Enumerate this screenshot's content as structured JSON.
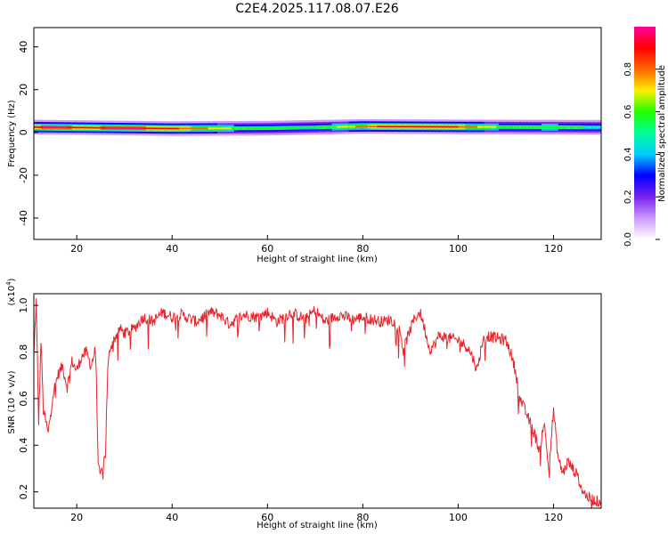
{
  "title": "C2E4.2025.117.08.07.E26",
  "chart_data": [
    {
      "type": "heatmap",
      "xlabel": "Height of straight line (km)",
      "ylabel": "Frequency (Hz)",
      "xlim": [
        11,
        130
      ],
      "ylim": [
        -50,
        49
      ],
      "x_ticks": [
        "20",
        "40",
        "60",
        "80",
        "100",
        "120"
      ],
      "y_ticks": [
        "40",
        "20",
        "0",
        "-20",
        "-40"
      ],
      "grid": false,
      "colorbar": {
        "label": "Normalized spectral amplitude",
        "range": [
          0,
          1
        ],
        "ticks": [
          "0.0",
          "0.2",
          "0.4",
          "0.6",
          "0.8"
        ],
        "colors": [
          "#ffffff",
          "#cc99ff",
          "#7722ee",
          "#0000ff",
          "#00ccff",
          "#00ff99",
          "#22ff00",
          "#ffee00",
          "#ff6600",
          "#ff0000",
          "#ff0099"
        ]
      },
      "band": {
        "center_hz": [
          [
            11,
            2.5
          ],
          [
            40,
            1.8
          ],
          [
            60,
            2.0
          ],
          [
            80,
            2.8
          ],
          [
            100,
            2.6
          ],
          [
            130,
            2.4
          ]
        ],
        "peak_amplitude": [
          [
            11,
            0.85
          ],
          [
            14,
            1.0
          ],
          [
            22,
            0.9
          ],
          [
            30,
            1.0
          ],
          [
            45,
            0.8
          ],
          [
            55,
            0.6
          ],
          [
            70,
            0.55
          ],
          [
            85,
            0.9
          ],
          [
            98,
            0.9
          ],
          [
            110,
            0.6
          ],
          [
            120,
            0.65
          ],
          [
            130,
            0.5
          ]
        ]
      }
    },
    {
      "type": "line",
      "xlabel": "Height of straight line (km)",
      "ylabel": "SNR (10 * v/v)",
      "y_multiplier": "(x10",
      "y_multiplier_exp": "4",
      "y_multiplier_close": ")",
      "xlim": [
        11,
        130
      ],
      "ylim": [
        0.13,
        1.05
      ],
      "x_ticks": [
        "20",
        "40",
        "60",
        "80",
        "100",
        "120"
      ],
      "y_ticks": [
        "1.0",
        "0.8",
        "0.6",
        "0.4",
        "0.2"
      ],
      "color": "#e8242a",
      "grid": false,
      "series": [
        {
          "x": [
            11,
            11.5,
            12,
            12.5,
            13,
            14,
            15,
            16,
            17,
            18,
            19,
            20,
            21,
            22,
            23,
            24,
            24.5,
            25,
            25.5,
            26,
            26.5,
            27,
            28,
            29,
            30,
            32,
            34,
            36,
            38,
            40,
            42,
            45,
            48,
            50,
            52,
            55,
            58,
            60,
            62,
            65,
            68,
            70,
            72,
            75,
            78,
            80,
            82,
            84,
            86,
            87,
            88,
            88.5,
            89,
            90,
            91,
            92,
            93,
            94,
            95,
            96,
            98,
            100,
            102,
            103,
            104,
            105,
            106,
            108,
            110,
            111,
            112,
            113,
            114,
            115,
            116,
            117,
            118,
            119,
            120,
            121,
            122,
            123,
            124,
            125,
            126,
            127,
            128,
            129,
            130
          ],
          "y": [
            0.78,
            1.02,
            0.5,
            0.85,
            0.55,
            0.45,
            0.62,
            0.7,
            0.74,
            0.65,
            0.76,
            0.72,
            0.78,
            0.8,
            0.74,
            0.82,
            0.3,
            0.27,
            0.32,
            0.36,
            0.72,
            0.82,
            0.86,
            0.9,
            0.88,
            0.9,
            0.95,
            0.93,
            0.97,
            0.95,
            0.96,
            0.93,
            0.97,
            0.96,
            0.92,
            0.96,
            0.95,
            0.97,
            0.93,
            0.97,
            0.94,
            0.98,
            0.93,
            0.96,
            0.94,
            0.95,
            0.94,
            0.93,
            0.94,
            0.92,
            0.88,
            0.8,
            0.84,
            0.9,
            0.95,
            0.97,
            0.9,
            0.81,
            0.83,
            0.87,
            0.86,
            0.85,
            0.82,
            0.78,
            0.72,
            0.84,
            0.87,
            0.86,
            0.85,
            0.8,
            0.72,
            0.6,
            0.55,
            0.5,
            0.45,
            0.38,
            0.5,
            0.3,
            0.55,
            0.34,
            0.28,
            0.33,
            0.3,
            0.27,
            0.21,
            0.18,
            0.17,
            0.16,
            0.16
          ]
        }
      ]
    }
  ]
}
